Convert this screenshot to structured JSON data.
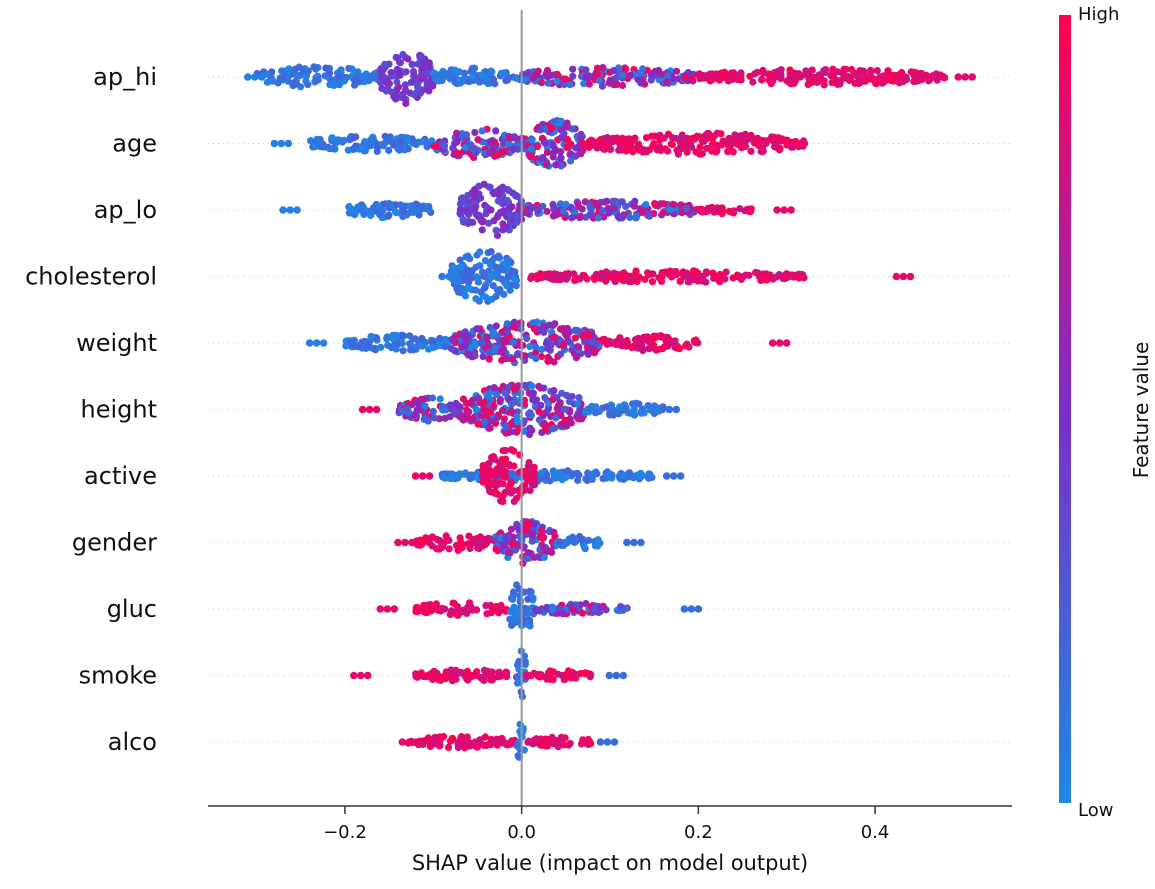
{
  "chart_data": {
    "type": "scatter",
    "subtype": "shap-beeswarm",
    "title": "",
    "xlabel": "SHAP value (impact on model output)",
    "ylabel": "",
    "xlim": [
      -0.355,
      0.555
    ],
    "xticks": [
      -0.2,
      0.0,
      0.2,
      0.4
    ],
    "xtick_labels": [
      "−0.2",
      "0.0",
      "0.2",
      "0.4"
    ],
    "grid": false,
    "zero_line": 0.0,
    "colorbar": {
      "label": "Feature value",
      "high_label": "High",
      "low_label": "Low",
      "low_color": "#1e88e5",
      "mid_color": "#7b2ec8",
      "high_color": "#ff0051"
    },
    "features": [
      {
        "name": "ap_hi",
        "min": -0.31,
        "max": 0.51,
        "core_width": 0.025,
        "high_color_side": "right",
        "segments": [
          {
            "from": -0.3,
            "to": -0.16,
            "color": "low",
            "height": 0.4
          },
          {
            "from": -0.16,
            "to": -0.1,
            "color": "mid",
            "height": 1.0
          },
          {
            "from": -0.1,
            "to": -0.01,
            "color": "low",
            "height": 0.35
          },
          {
            "from": -0.01,
            "to": 0.2,
            "color": "mix",
            "height": 0.35
          },
          {
            "from": 0.2,
            "to": 0.48,
            "color": "high",
            "height": 0.3
          }
        ]
      },
      {
        "name": "age",
        "min": -0.28,
        "max": 0.32,
        "core_width": 0.015,
        "high_color_side": "right",
        "segments": [
          {
            "from": -0.24,
            "to": -0.1,
            "color": "low",
            "height": 0.3
          },
          {
            "from": -0.1,
            "to": 0.0,
            "color": "mix",
            "height": 0.55
          },
          {
            "from": 0.0,
            "to": 0.07,
            "color": "mix",
            "height": 0.9
          },
          {
            "from": 0.07,
            "to": 0.32,
            "color": "high",
            "height": 0.4
          }
        ]
      },
      {
        "name": "ap_lo",
        "min": -0.27,
        "max": 0.305,
        "core_width": 0.01,
        "high_color_side": "right",
        "segments": [
          {
            "from": -0.2,
            "to": -0.1,
            "color": "low",
            "height": 0.3
          },
          {
            "from": -0.07,
            "to": 0.0,
            "color": "mid",
            "height": 1.0
          },
          {
            "from": 0.0,
            "to": 0.2,
            "color": "mix",
            "height": 0.35
          },
          {
            "from": 0.2,
            "to": 0.26,
            "color": "high",
            "height": 0.15
          }
        ]
      },
      {
        "name": "cholesterol",
        "min": -0.09,
        "max": 0.44,
        "core_width": 0.005,
        "high_color_side": "right",
        "segments": [
          {
            "from": -0.08,
            "to": -0.005,
            "color": "low",
            "height": 1.0
          },
          {
            "from": 0.01,
            "to": 0.32,
            "color": "high",
            "height": 0.22
          }
        ]
      },
      {
        "name": "weight",
        "min": -0.24,
        "max": 0.3,
        "core_width": 0.015,
        "high_color_side": "right",
        "segments": [
          {
            "from": -0.2,
            "to": -0.08,
            "color": "low",
            "height": 0.3
          },
          {
            "from": -0.08,
            "to": 0.09,
            "color": "mix",
            "height": 0.8
          },
          {
            "from": 0.09,
            "to": 0.2,
            "color": "high",
            "height": 0.3
          }
        ]
      },
      {
        "name": "height",
        "min": -0.18,
        "max": 0.175,
        "core_width": 0.01,
        "high_color_side": "left",
        "segments": [
          {
            "from": -0.14,
            "to": -0.07,
            "color": "mix",
            "height": 0.45
          },
          {
            "from": -0.07,
            "to": 0.07,
            "color": "mix",
            "height": 0.95
          },
          {
            "from": 0.07,
            "to": 0.16,
            "color": "low",
            "height": 0.25
          }
        ]
      },
      {
        "name": "active",
        "min": -0.12,
        "max": 0.18,
        "core_width": 0.005,
        "high_color_side": "left",
        "segments": [
          {
            "from": -0.09,
            "to": 0.15,
            "color": "low",
            "height": 0.2
          },
          {
            "from": -0.045,
            "to": 0.015,
            "color": "high",
            "height": 1.0
          }
        ]
      },
      {
        "name": "gender",
        "min": -0.14,
        "max": 0.135,
        "core_width": 0.005,
        "high_color_side": "left",
        "segments": [
          {
            "from": -0.12,
            "to": -0.03,
            "color": "high",
            "height": 0.3
          },
          {
            "from": -0.03,
            "to": 0.04,
            "color": "mix",
            "height": 0.8
          },
          {
            "from": 0.04,
            "to": 0.09,
            "color": "low",
            "height": 0.25
          }
        ]
      },
      {
        "name": "gluc",
        "min": -0.16,
        "max": 0.2,
        "core_width": 0.005,
        "high_color_side": "left",
        "segments": [
          {
            "from": -0.12,
            "to": -0.015,
            "color": "high",
            "height": 0.25
          },
          {
            "from": -0.015,
            "to": 0.015,
            "color": "low",
            "height": 1.0
          },
          {
            "from": 0.015,
            "to": 0.12,
            "color": "mix",
            "height": 0.22
          }
        ]
      },
      {
        "name": "smoke",
        "min": -0.19,
        "max": 0.115,
        "core_width": 0.004,
        "high_color_side": "left",
        "segments": [
          {
            "from": -0.12,
            "to": -0.005,
            "color": "high",
            "height": 0.22
          },
          {
            "from": -0.005,
            "to": 0.005,
            "color": "low",
            "height": 1.0
          },
          {
            "from": 0.005,
            "to": 0.08,
            "color": "high",
            "height": 0.18
          }
        ]
      },
      {
        "name": "alco",
        "min": -0.135,
        "max": 0.105,
        "core_width": 0.004,
        "high_color_side": "left",
        "segments": [
          {
            "from": -0.13,
            "to": -0.005,
            "color": "high",
            "height": 0.22
          },
          {
            "from": -0.005,
            "to": 0.005,
            "color": "low",
            "height": 1.0
          },
          {
            "from": 0.005,
            "to": 0.08,
            "color": "high",
            "height": 0.18
          }
        ]
      }
    ]
  }
}
